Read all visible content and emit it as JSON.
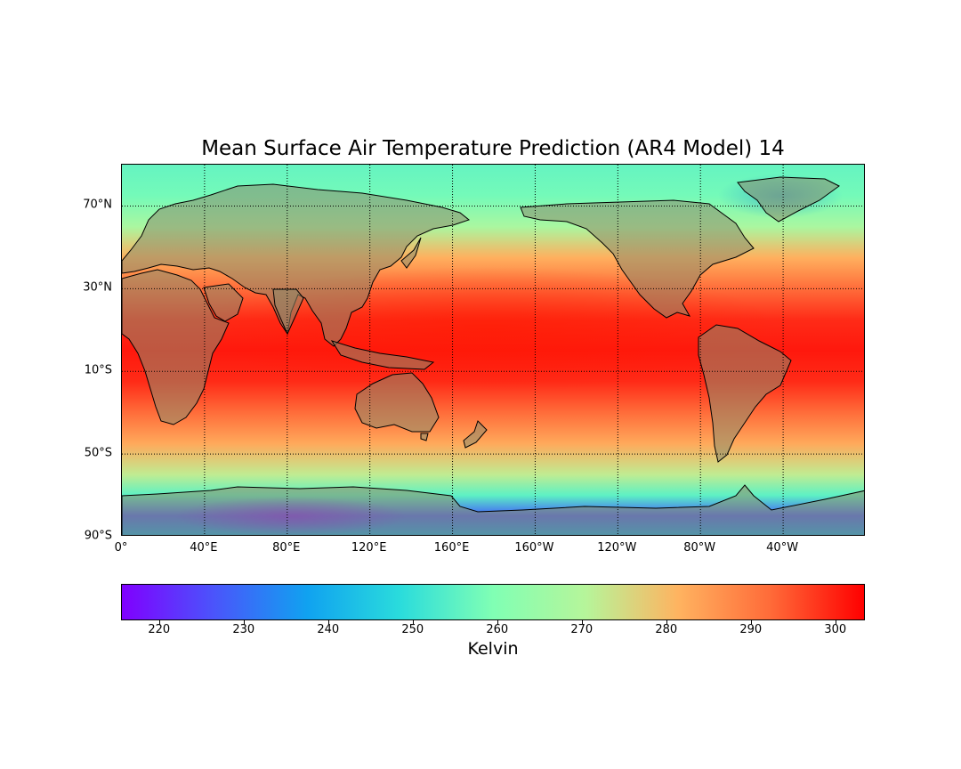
{
  "title": "Mean Surface Air Temperature Prediction (AR4 Model) 14",
  "map": {
    "projection": "equirectangular, centered 180°",
    "lon_range": [
      0,
      360
    ],
    "lat_range": [
      -90,
      90
    ],
    "lat_labels": [
      "70°N",
      "30°N",
      "10°S",
      "50°S",
      "90°S"
    ],
    "lat_values": [
      70,
      30,
      -10,
      -50,
      -90
    ],
    "lon_labels": [
      "0°",
      "40°E",
      "80°E",
      "120°E",
      "160°E",
      "160°W",
      "120°W",
      "80°W",
      "40°W"
    ],
    "lon_values": [
      0,
      40,
      80,
      120,
      160,
      200,
      240,
      280,
      320
    ],
    "gridlines": "dotted",
    "land_overlay": "gray-green semi-transparent continents with coastlines"
  },
  "colorbar": {
    "label": "Kelvin",
    "min": 215.5,
    "max": 303.5,
    "tick_labels": [
      "220",
      "230",
      "240",
      "250",
      "260",
      "270",
      "280",
      "290",
      "300"
    ],
    "tick_values": [
      220,
      230,
      240,
      250,
      260,
      270,
      280,
      290,
      300
    ],
    "colormap": "rainbow",
    "colors": [
      "#8000ff",
      "#4a55fb",
      "#10a2f0",
      "#2adcdc",
      "#80ffb4",
      "#b6f59a",
      "#ffb360",
      "#ff6a38",
      "#ff0000"
    ]
  },
  "chart_data": {
    "type": "heatmap",
    "title": "Mean Surface Air Temperature Prediction (AR4 Model) 14",
    "zlabel": "Kelvin",
    "zlim": [
      215.5,
      303.5
    ],
    "zonal_profile": {
      "lat": [
        90,
        75,
        60,
        45,
        30,
        15,
        0,
        -15,
        -30,
        -45,
        -60,
        -70,
        -80,
        -90
      ],
      "temperature_K": [
        256,
        258,
        268,
        282,
        292,
        299,
        301,
        299,
        292,
        283,
        272,
        255,
        228,
        238
      ]
    }
  }
}
